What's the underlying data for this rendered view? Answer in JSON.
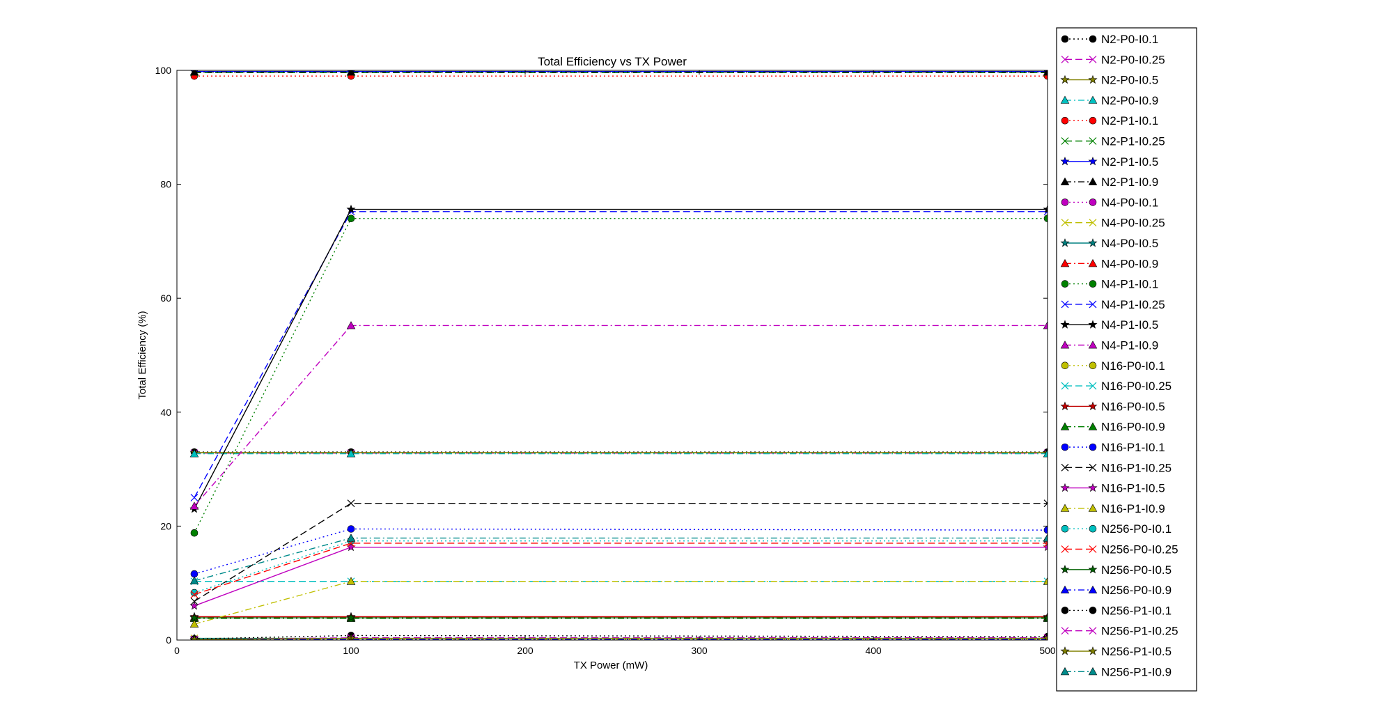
{
  "chart_data": {
    "type": "line",
    "title": "Total Efficiency vs TX Power",
    "xlabel": "TX Power (mW)",
    "ylabel": "Total Efficiency (%)",
    "xlim": [
      0,
      500
    ],
    "ylim": [
      0,
      100
    ],
    "xticks": [
      "0",
      "100",
      "200",
      "300",
      "400",
      "500"
    ],
    "yticks": [
      "0",
      "20",
      "40",
      "60",
      "80",
      "100"
    ],
    "grid": false,
    "legend_position": "right",
    "x": [
      10,
      100,
      500
    ],
    "series": [
      {
        "name": "N2-P0-I0.1",
        "values": [
          33.0,
          33.0,
          33.0
        ],
        "color": "#000000",
        "marker": "circle",
        "dash": "dot"
      },
      {
        "name": "N2-P0-I0.25",
        "values": [
          32.8,
          32.8,
          32.8
        ],
        "color": "#bf00bf",
        "marker": "x",
        "dash": "dash"
      },
      {
        "name": "N2-P0-I0.5",
        "values": [
          32.9,
          32.9,
          32.9
        ],
        "color": "#808000",
        "marker": "star",
        "dash": "solid"
      },
      {
        "name": "N2-P0-I0.9",
        "values": [
          32.7,
          32.7,
          32.7
        ],
        "color": "#00bfbf",
        "marker": "triangle",
        "dash": "dashdot"
      },
      {
        "name": "N2-P1-I0.1",
        "values": [
          99.0,
          99.0,
          99.0
        ],
        "color": "#ff0000",
        "marker": "circle",
        "dash": "dot"
      },
      {
        "name": "N2-P1-I0.25",
        "values": [
          99.6,
          99.6,
          99.6
        ],
        "color": "#008000",
        "marker": "x",
        "dash": "dash"
      },
      {
        "name": "N2-P1-I0.5",
        "values": [
          99.8,
          99.8,
          99.8
        ],
        "color": "#0000ff",
        "marker": "star",
        "dash": "solid"
      },
      {
        "name": "N2-P1-I0.9",
        "values": [
          99.7,
          99.7,
          99.7
        ],
        "color": "#000000",
        "marker": "triangle",
        "dash": "dashdot"
      },
      {
        "name": "N4-P0-I0.1",
        "values": [
          0.2,
          0.2,
          0.2
        ],
        "color": "#bf00bf",
        "marker": "circle",
        "dash": "dot"
      },
      {
        "name": "N4-P0-I0.25",
        "values": [
          0.3,
          0.3,
          0.3
        ],
        "color": "#bfbf00",
        "marker": "x",
        "dash": "dash"
      },
      {
        "name": "N4-P0-I0.5",
        "values": [
          0.3,
          0.3,
          0.3
        ],
        "color": "#008080",
        "marker": "star",
        "dash": "solid"
      },
      {
        "name": "N4-P0-I0.9",
        "values": [
          4.0,
          4.0,
          4.0
        ],
        "color": "#ff0000",
        "marker": "triangle",
        "dash": "dashdot"
      },
      {
        "name": "N4-P1-I0.1",
        "values": [
          18.8,
          74.0,
          74.0
        ],
        "color": "#008000",
        "marker": "circle",
        "dash": "dot"
      },
      {
        "name": "N4-P1-I0.25",
        "values": [
          25.0,
          75.2,
          75.2
        ],
        "color": "#0000ff",
        "marker": "x",
        "dash": "dash"
      },
      {
        "name": "N4-P1-I0.5",
        "values": [
          23.0,
          75.6,
          75.6
        ],
        "color": "#000000",
        "marker": "star",
        "dash": "solid"
      },
      {
        "name": "N4-P1-I0.9",
        "values": [
          23.5,
          55.2,
          55.2
        ],
        "color": "#bf00bf",
        "marker": "triangle",
        "dash": "dashdot"
      },
      {
        "name": "N16-P0-I0.1",
        "values": [
          0.1,
          0.1,
          0.1
        ],
        "color": "#bfbf00",
        "marker": "circle",
        "dash": "dot"
      },
      {
        "name": "N16-P0-I0.25",
        "values": [
          10.3,
          10.3,
          10.3
        ],
        "color": "#00bfbf",
        "marker": "x",
        "dash": "dash"
      },
      {
        "name": "N16-P0-I0.5",
        "values": [
          4.1,
          4.1,
          4.1
        ],
        "color": "#c00000",
        "marker": "star",
        "dash": "solid"
      },
      {
        "name": "N16-P0-I0.9",
        "values": [
          3.8,
          3.8,
          3.8
        ],
        "color": "#008000",
        "marker": "triangle",
        "dash": "dashdot"
      },
      {
        "name": "N16-P1-I0.1",
        "values": [
          11.6,
          19.5,
          19.3
        ],
        "color": "#0000ff",
        "marker": "circle",
        "dash": "dot"
      },
      {
        "name": "N16-P1-I0.25",
        "values": [
          6.8,
          24.0,
          24.0
        ],
        "color": "#000000",
        "marker": "x",
        "dash": "dash"
      },
      {
        "name": "N16-P1-I0.5",
        "values": [
          6.0,
          16.3,
          16.3
        ],
        "color": "#bf00bf",
        "marker": "star",
        "dash": "solid"
      },
      {
        "name": "N16-P1-I0.9",
        "values": [
          2.8,
          10.3,
          10.3
        ],
        "color": "#bfbf00",
        "marker": "triangle",
        "dash": "dashdot"
      },
      {
        "name": "N256-P0-I0.1",
        "values": [
          8.3,
          17.4,
          17.4
        ],
        "color": "#00bfbf",
        "marker": "circle",
        "dash": "dot"
      },
      {
        "name": "N256-P0-I0.25",
        "values": [
          8.0,
          17.0,
          17.0
        ],
        "color": "#ff0000",
        "marker": "x",
        "dash": "dash"
      },
      {
        "name": "N256-P0-I0.5",
        "values": [
          3.9,
          3.9,
          3.9
        ],
        "color": "#006000",
        "marker": "star",
        "dash": "solid"
      },
      {
        "name": "N256-P0-I0.9",
        "values": [
          0.1,
          0.1,
          0.1
        ],
        "color": "#0000ff",
        "marker": "triangle",
        "dash": "dashdot"
      },
      {
        "name": "N256-P1-I0.1",
        "values": [
          0.2,
          0.8,
          0.6
        ],
        "color": "#000000",
        "marker": "circle",
        "dash": "dot"
      },
      {
        "name": "N256-P1-I0.25",
        "values": [
          0.1,
          0.4,
          0.4
        ],
        "color": "#bf00bf",
        "marker": "x",
        "dash": "dash"
      },
      {
        "name": "N256-P1-I0.5",
        "values": [
          0.1,
          0.3,
          0.3
        ],
        "color": "#808000",
        "marker": "star",
        "dash": "solid"
      },
      {
        "name": "N256-P1-I0.9",
        "values": [
          10.4,
          17.9,
          17.9
        ],
        "color": "#008b8b",
        "marker": "triangle",
        "dash": "dashdot"
      }
    ]
  }
}
